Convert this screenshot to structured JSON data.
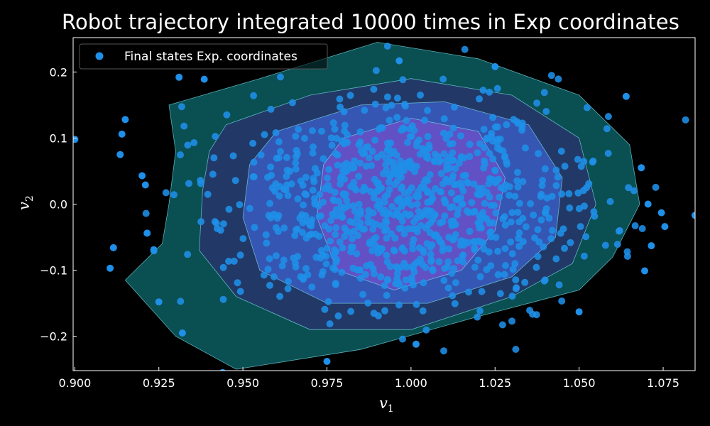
{
  "chart_data": {
    "type": "scatter",
    "title": "Robot trajectory integrated 10000 times in Exp coordinates",
    "xlabel": "v",
    "xlabel_sub": "1",
    "ylabel": "v",
    "ylabel_sub": "2",
    "xlim": [
      0.8995,
      1.0845
    ],
    "ylim": [
      -0.252,
      0.252
    ],
    "xticks": [
      0.9,
      0.925,
      0.95,
      0.975,
      1.0,
      1.025,
      1.05,
      1.075
    ],
    "xtick_labels": [
      "0.900",
      "0.925",
      "0.950",
      "0.975",
      "1.000",
      "1.025",
      "1.050",
      "1.075"
    ],
    "yticks": [
      -0.2,
      -0.1,
      0.0,
      0.1,
      0.2
    ],
    "ytick_labels": [
      "−0.2",
      "−0.1",
      "0.0",
      "0.1",
      "0.2"
    ],
    "grid": false,
    "legend_position": "top-left",
    "background_color": "#000000",
    "colors": {
      "marker": "#1f8fe8",
      "density_outer": "#0a4f52",
      "density_mid": "#27356b",
      "density_inner": "#3f63d4",
      "density_core": "#7a4fd0",
      "contour_line": "#7fe6ee"
    },
    "series": [
      {
        "name": "Final states Exp. coordinates",
        "color": "#1f8fe8",
        "outliers": [
          {
            "x": 0.9,
            "y": 0.098
          },
          {
            "x": 0.9135,
            "y": 0.075
          },
          {
            "x": 0.915,
            "y": 0.128
          },
          {
            "x": 0.914,
            "y": 0.106
          },
          {
            "x": 0.92,
            "y": 0.043
          },
          {
            "x": 0.921,
            "y": 0.029
          },
          {
            "x": 0.9215,
            "y": -0.044
          },
          {
            "x": 0.9235,
            "y": -0.069
          },
          {
            "x": 0.9115,
            "y": -0.066
          },
          {
            "x": 0.9105,
            "y": -0.097
          },
          {
            "x": 0.925,
            "y": -0.148
          },
          {
            "x": 0.932,
            "y": -0.195
          },
          {
            "x": 0.944,
            "y": -0.255
          },
          {
            "x": 0.975,
            "y": -0.238
          },
          {
            "x": 1.05,
            "y": -0.163
          },
          {
            "x": 1.064,
            "y": 0.163
          },
          {
            "x": 1.0685,
            "y": 0.055
          },
          {
            "x": 1.0705,
            "y": -0.0
          },
          {
            "x": 1.0745,
            "y": -0.013
          },
          {
            "x": 1.0755,
            "y": -0.034
          },
          {
            "x": 1.0715,
            "y": -0.063
          },
          {
            "x": 1.0695,
            "y": -0.101
          },
          {
            "x": 1.0845,
            "y": -0.017
          },
          {
            "x": 1.025,
            "y": 0.208
          },
          {
            "x": 1.0015,
            "y": -0.212
          },
          {
            "x": 0.9965,
            "y": 0.217
          },
          {
            "x": 0.9385,
            "y": 0.189
          },
          {
            "x": 0.931,
            "y": 0.192
          }
        ],
        "cluster": {
          "n_points": 900,
          "mean": [
            0.9985,
            0.0
          ],
          "std": [
            0.0285,
            0.082
          ]
        }
      }
    ],
    "density_regions": [
      {
        "level": "outer",
        "points": [
          [
            0.928,
            0.15
          ],
          [
            0.955,
            0.19
          ],
          [
            0.99,
            0.245
          ],
          [
            1.02,
            0.22
          ],
          [
            1.05,
            0.165
          ],
          [
            1.065,
            0.09
          ],
          [
            1.068,
            0.0
          ],
          [
            1.06,
            -0.08
          ],
          [
            1.05,
            -0.13
          ],
          [
            1.02,
            -0.17
          ],
          [
            0.985,
            -0.22
          ],
          [
            0.948,
            -0.25
          ],
          [
            0.93,
            -0.2
          ],
          [
            0.915,
            -0.115
          ],
          [
            0.926,
            -0.06
          ],
          [
            0.928,
            0.0
          ],
          [
            0.93,
            0.08
          ]
        ]
      },
      {
        "level": "mid",
        "points": [
          [
            0.945,
            0.12
          ],
          [
            0.97,
            0.165
          ],
          [
            1.0,
            0.19
          ],
          [
            1.03,
            0.165
          ],
          [
            1.05,
            0.1
          ],
          [
            1.055,
            0.0
          ],
          [
            1.048,
            -0.09
          ],
          [
            1.03,
            -0.14
          ],
          [
            1.0,
            -0.19
          ],
          [
            0.97,
            -0.19
          ],
          [
            0.948,
            -0.14
          ],
          [
            0.937,
            -0.07
          ],
          [
            0.938,
            0.02
          ],
          [
            0.94,
            0.08
          ]
        ]
      },
      {
        "level": "inner",
        "points": [
          [
            0.96,
            0.11
          ],
          [
            0.985,
            0.15
          ],
          [
            1.01,
            0.155
          ],
          [
            1.035,
            0.12
          ],
          [
            1.045,
            0.04
          ],
          [
            1.043,
            -0.05
          ],
          [
            1.03,
            -0.11
          ],
          [
            1.005,
            -0.15
          ],
          [
            0.975,
            -0.15
          ],
          [
            0.955,
            -0.1
          ],
          [
            0.95,
            -0.02
          ],
          [
            0.952,
            0.06
          ]
        ]
      },
      {
        "level": "core",
        "points": [
          [
            0.98,
            0.1
          ],
          [
            1.0,
            0.13
          ],
          [
            1.02,
            0.11
          ],
          [
            1.028,
            0.04
          ],
          [
            1.025,
            -0.04
          ],
          [
            1.015,
            -0.1
          ],
          [
            0.995,
            -0.13
          ],
          [
            0.978,
            -0.1
          ],
          [
            0.972,
            -0.02
          ],
          [
            0.974,
            0.06
          ]
        ]
      }
    ]
  }
}
